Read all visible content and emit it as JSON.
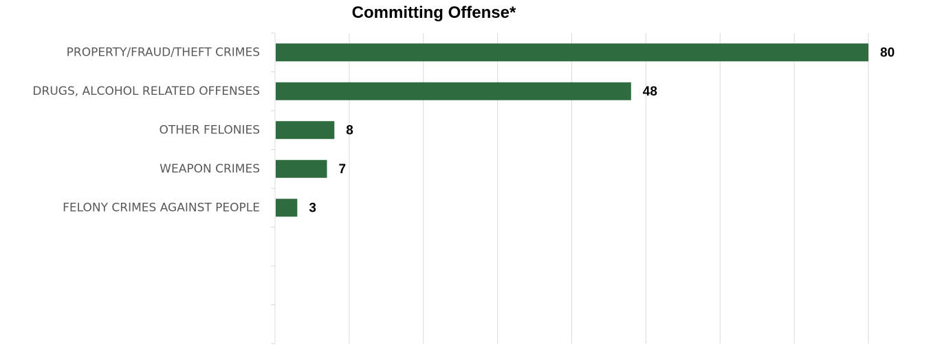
{
  "chart_data": {
    "type": "bar",
    "orientation": "horizontal",
    "title": "Committing Offense*",
    "xlabel": "",
    "ylabel": "",
    "categories": [
      "PROPERTY/FRAUD/THEFT CRIMES",
      "DRUGS, ALCOHOL RELATED OFFENSES",
      "OTHER FELONIES",
      "WEAPON CRIMES",
      "FELONY CRIMES AGAINST PEOPLE",
      "",
      "",
      ""
    ],
    "values": [
      80,
      48,
      8,
      7,
      3,
      null,
      null,
      null
    ],
    "xlim": [
      0,
      80
    ],
    "x_grid_step": 10,
    "grid": true,
    "legend": "none",
    "bar_color": "#2e6b3f",
    "grid_color": "#d9d9d9"
  }
}
